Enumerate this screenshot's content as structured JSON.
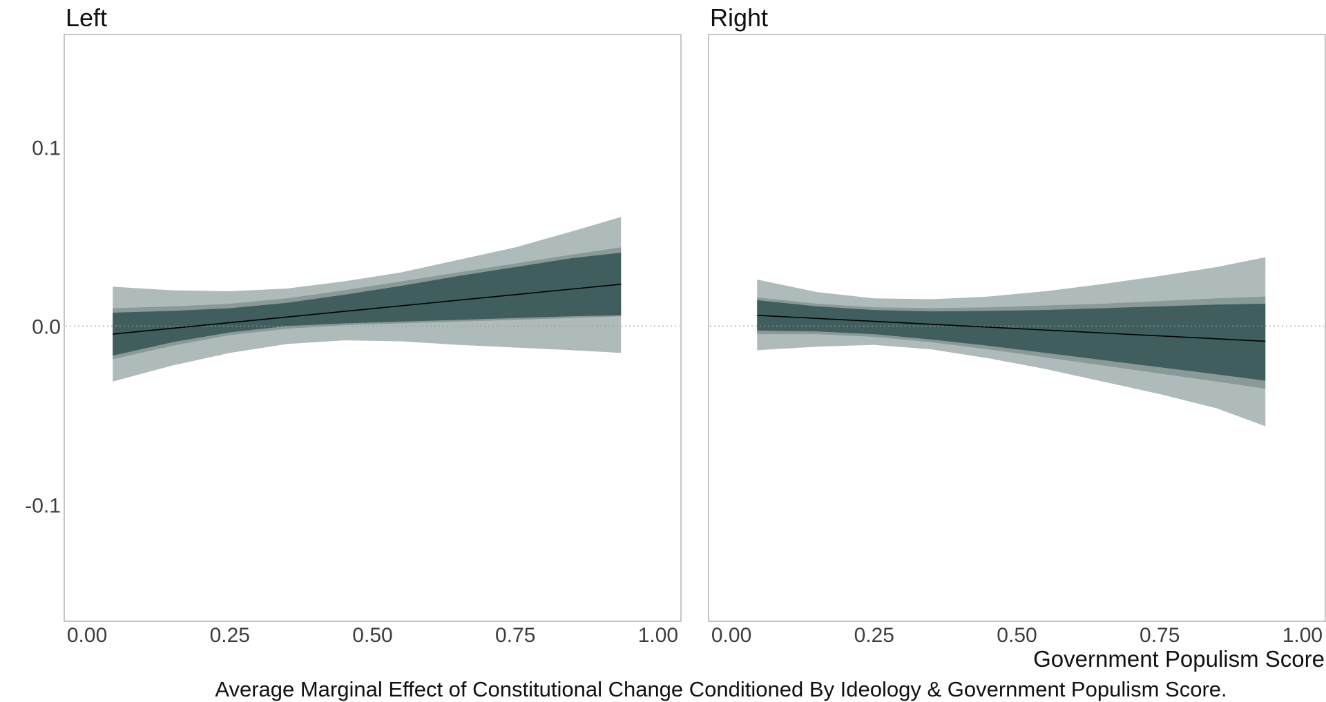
{
  "chart_data": {
    "type": "area",
    "caption": "Average Marginal Effect of Constitutional Change Conditioned By Ideology & Government Populism Score.",
    "xlabel": "Government Populism Score",
    "ylabel": "",
    "xlim": [
      -0.04,
      1.04
    ],
    "ylim": [
      -0.165,
      0.163
    ],
    "x_ticks": [
      {
        "value": 0.0,
        "label": "0.00"
      },
      {
        "value": 0.25,
        "label": "0.25"
      },
      {
        "value": 0.5,
        "label": "0.50"
      },
      {
        "value": 0.75,
        "label": "0.75"
      },
      {
        "value": 1.0,
        "label": "1.00"
      }
    ],
    "y_ticks": [
      {
        "value": 0.1,
        "label": "0.1"
      },
      {
        "value": 0.0,
        "label": "0.0"
      },
      {
        "value": -0.1,
        "label": "-0.1"
      }
    ],
    "reference_line": 0.0,
    "grid": false,
    "colors": {
      "band_outer": "#aebbba",
      "band_middle": "#8a9a98",
      "band_inner": "#3f5e5d",
      "line": "#000000",
      "frame": "#b3b3b3",
      "reference": "#9a9a9a"
    },
    "panels": [
      {
        "title": "Left",
        "x": [
          0.045,
          0.15,
          0.25,
          0.35,
          0.45,
          0.55,
          0.65,
          0.75,
          0.85,
          0.935
        ],
        "estimate": [
          -0.0045,
          0.0008,
          0.0058,
          0.0108,
          0.0158,
          0.0208,
          0.0258,
          0.0308,
          0.0358,
          0.0234
        ],
        "ci_outer_lower": [
          -0.031,
          -0.022,
          -0.015,
          -0.01,
          -0.008,
          -0.0085,
          -0.0105,
          -0.012,
          -0.0135,
          -0.015
        ],
        "ci_outer_upper": [
          0.022,
          0.02,
          0.0195,
          0.021,
          0.025,
          0.03,
          0.037,
          0.044,
          0.053,
          0.061
        ],
        "ci_middle_lower": [
          -0.0185,
          -0.011,
          -0.005,
          -0.0015,
          0.0005,
          0.0015,
          0.0025,
          0.0035,
          0.0045,
          0.0055
        ],
        "ci_middle_upper": [
          0.01,
          0.011,
          0.0125,
          0.0155,
          0.02,
          0.025,
          0.03,
          0.035,
          0.04,
          0.044
        ],
        "ci_inner_lower": [
          -0.0165,
          -0.009,
          -0.0035,
          0.0,
          0.0015,
          0.0025,
          0.0035,
          0.0045,
          0.0055,
          0.006
        ],
        "ci_inner_upper": [
          0.0075,
          0.0085,
          0.01,
          0.013,
          0.0175,
          0.0225,
          0.028,
          0.033,
          0.038,
          0.041
        ]
      },
      {
        "title": "Right",
        "x": [
          0.045,
          0.15,
          0.25,
          0.35,
          0.45,
          0.55,
          0.65,
          0.75,
          0.85,
          0.935
        ],
        "estimate": [
          0.006,
          0.0045,
          0.003,
          0.0015,
          -0.0,
          -0.0015,
          -0.003,
          -0.0045,
          -0.006,
          -0.0085
        ],
        "ci_outer_lower": [
          -0.0135,
          -0.0115,
          -0.0105,
          -0.013,
          -0.018,
          -0.024,
          -0.031,
          -0.038,
          -0.046,
          -0.056
        ],
        "ci_outer_upper": [
          0.026,
          0.019,
          0.0155,
          0.015,
          0.0165,
          0.0195,
          0.0235,
          0.028,
          0.033,
          0.0385
        ],
        "ci_middle_lower": [
          -0.0045,
          -0.0045,
          -0.006,
          -0.009,
          -0.013,
          -0.0175,
          -0.022,
          -0.0265,
          -0.031,
          -0.035
        ],
        "ci_middle_upper": [
          0.016,
          0.0125,
          0.0105,
          0.01,
          0.0105,
          0.0115,
          0.0125,
          0.014,
          0.0155,
          0.0165
        ],
        "ci_inner_lower": [
          -0.0025,
          -0.003,
          -0.0045,
          -0.0075,
          -0.011,
          -0.015,
          -0.019,
          -0.023,
          -0.027,
          -0.0305
        ],
        "ci_inner_upper": [
          0.0145,
          0.011,
          0.009,
          0.0082,
          0.0085,
          0.009,
          0.01,
          0.011,
          0.012,
          0.0125
        ]
      }
    ]
  }
}
